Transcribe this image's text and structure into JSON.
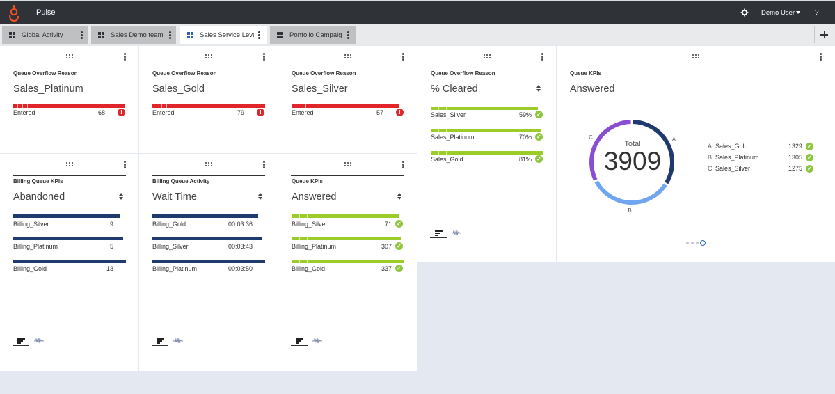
{
  "app": {
    "title": "Pulse",
    "user": "Demo User",
    "help": "?"
  },
  "icons": {
    "logo": "genesys-logo-icon",
    "settings": "gear-icon",
    "user_menu": "chevron-down-icon",
    "tab": "dashboard-grid-icon",
    "more": "more-vertical-icon",
    "add": "plus-icon",
    "drag": "drag-handle-icon",
    "sort": "sort-icon",
    "error": "error-icon",
    "ok": "check-circle-icon",
    "list_view": "list-view-icon",
    "chart_view": "waveform-chart-icon"
  },
  "colors": {
    "topbar": "#2f3338",
    "accent": "#2c62b3",
    "error": "#e0262b",
    "ok": "#8ec63f",
    "navy": "#1f3a6e",
    "donut_a": "#1f3a6e",
    "donut_b": "#6fa6ef",
    "donut_c": "#8a4fd1"
  },
  "tabs": [
    {
      "label": "Global Activity",
      "active": false
    },
    {
      "label": "Sales Demo team",
      "active": false
    },
    {
      "label": "Sales Service Leve",
      "active": true
    },
    {
      "label": "Portfolio Campaig",
      "active": false
    }
  ],
  "widgets": {
    "w1": {
      "title": "Queue Overflow Reason",
      "subtitle": "Sales_Platinum",
      "rows": [
        {
          "label": "Entered",
          "value": "68",
          "status": "error",
          "fill": 1.0
        }
      ]
    },
    "w2": {
      "title": "Queue Overflow Reason",
      "subtitle": "Sales_Gold",
      "rows": [
        {
          "label": "Entered",
          "value": "79",
          "status": "error",
          "fill": 1.0
        }
      ]
    },
    "w3": {
      "title": "Queue Overflow Reason",
      "subtitle": "Sales_Silver",
      "rows": [
        {
          "label": "Entered",
          "value": "57",
          "status": "error",
          "fill": 1.0
        }
      ]
    },
    "w4": {
      "title": "Queue Overflow Reason",
      "subtitle": "% Cleared",
      "rows": [
        {
          "label": "Sales_Silver",
          "value": "59%",
          "status": "ok",
          "fill": 1.0
        },
        {
          "label": "Sales_Platinum",
          "value": "70%",
          "status": "ok",
          "fill": 1.0
        },
        {
          "label": "Sales_Gold",
          "value": "81%",
          "status": "ok",
          "fill": 1.0
        }
      ]
    },
    "w5": {
      "title": "Billing Queue KPIs",
      "subtitle": "Abandoned",
      "rows": [
        {
          "label": "Billing_Silver",
          "value": "9",
          "fill": 0.95
        },
        {
          "label": "Billing_Platinum",
          "value": "5",
          "fill": 0.98
        },
        {
          "label": "Billing_Gold",
          "value": "13",
          "fill": 1.0
        }
      ]
    },
    "w6": {
      "title": "Billing Queue Activity",
      "subtitle": "Wait Time",
      "rows": [
        {
          "label": "Billing_Gold",
          "value": "00:03:36",
          "fill": 0.94
        },
        {
          "label": "Billing_Silver",
          "value": "00:03:43",
          "fill": 0.97
        },
        {
          "label": "Billing_Platinum",
          "value": "00:03:50",
          "fill": 1.0
        }
      ]
    },
    "w7": {
      "title": "Queue KPIs",
      "subtitle": "Answered",
      "rows": [
        {
          "label": "Billing_Silver",
          "value": "71",
          "status": "ok",
          "fill": 0.95
        },
        {
          "label": "Billing_Platinum",
          "value": "307",
          "status": "ok",
          "fill": 0.98
        },
        {
          "label": "Billing_Gold",
          "value": "337",
          "status": "ok",
          "fill": 1.0
        }
      ]
    },
    "w8": {
      "title": "Queue KPIs",
      "subtitle": "Answered",
      "total_label": "Total",
      "total_value": "3909",
      "segments": [
        {
          "letter": "A",
          "name": "Sales_Gold",
          "value": 1329
        },
        {
          "letter": "B",
          "name": "Sales_Platinum",
          "value": 1305
        },
        {
          "letter": "C",
          "name": "Sales_Silver",
          "value": 1275
        }
      ],
      "pager": {
        "pages": 3,
        "current": 3
      }
    }
  }
}
